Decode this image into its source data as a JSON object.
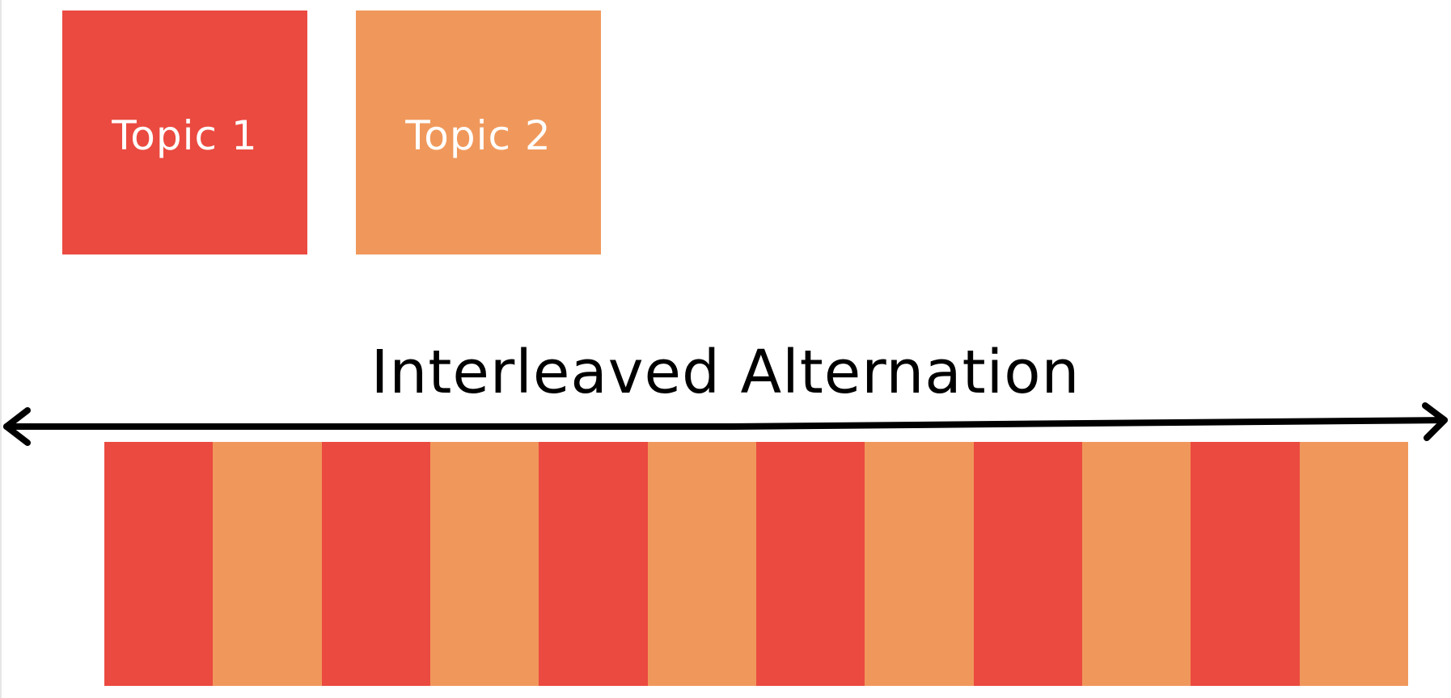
{
  "topics": [
    {
      "label": "Topic 1",
      "color": "#EB4A40"
    },
    {
      "label": "Topic 2",
      "color": "#F0985B"
    }
  ],
  "title": "Interleaved Alternation",
  "sequence": [
    "Topic 1",
    "Topic 2",
    "Topic 1",
    "Topic 2",
    "Topic 1",
    "Topic 2",
    "Topic 1",
    "Topic 2",
    "Topic 1",
    "Topic 2",
    "Topic 1",
    "Topic 2"
  ],
  "arrow": {
    "color": "#000000",
    "style": "double-headed"
  }
}
